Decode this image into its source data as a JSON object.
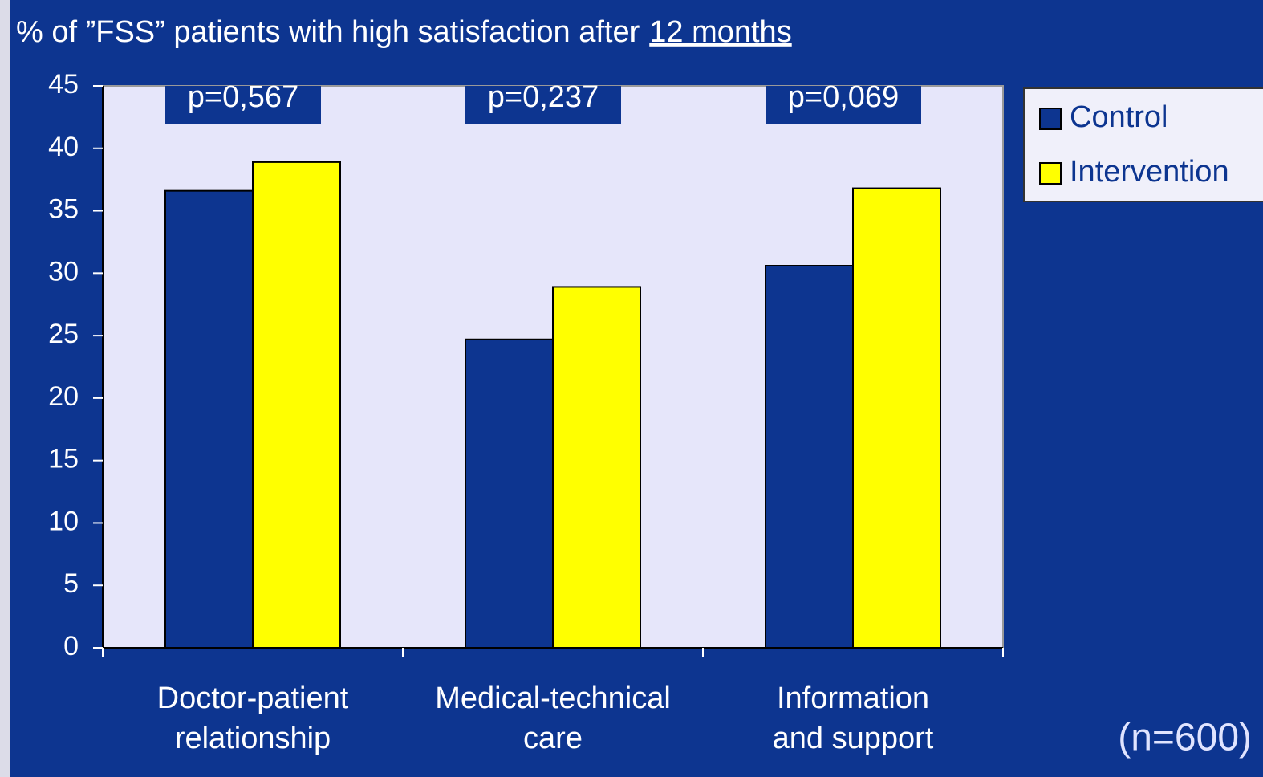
{
  "chart_data": {
    "type": "bar",
    "title": "% of ”FSS” patients with high satisfaction after",
    "title_underlined": "12 months",
    "categories": [
      "Doctor-patient relationship",
      "Medical-technical care",
      "Information and support"
    ],
    "series": [
      {
        "name": "Control",
        "color": "#0d3590",
        "values": [
          36.6,
          24.7,
          30.6
        ]
      },
      {
        "name": "Intervention",
        "color": "#ffff00",
        "values": [
          38.9,
          28.9,
          36.8
        ]
      }
    ],
    "annotations": [
      "p=0,567",
      "p=0,237",
      "p=0,069"
    ],
    "note": "(n=600)",
    "ylim": [
      0,
      45
    ],
    "yticks": [
      0,
      5,
      10,
      15,
      20,
      25,
      30,
      35,
      40,
      45
    ],
    "legend": "right"
  }
}
